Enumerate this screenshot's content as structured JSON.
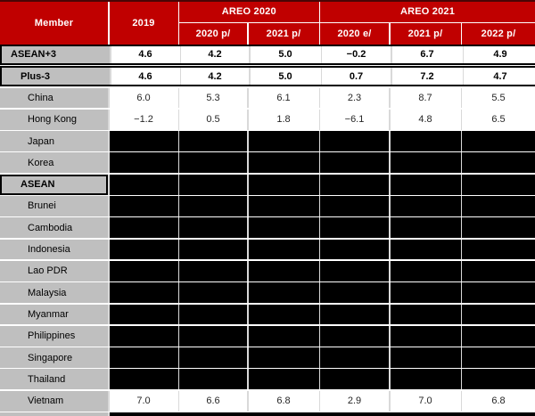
{
  "colors": {
    "header_red": "#C00000",
    "label_gray": "#BFBFBF",
    "grid_line": "#D9D9D9",
    "redaction_black": "#000000",
    "header_top_edge": "#4A0505"
  },
  "table": {
    "header": {
      "member_label": "Member",
      "year_col": "2019",
      "group_2020": "AREO 2020",
      "group_2021": "AREO 2021",
      "subs": [
        "2020 p/",
        "2021 p/",
        "2020 e/",
        "2021 p/",
        "2022 p/"
      ]
    },
    "rows": [
      {
        "member": "ASEAN+3",
        "style": "aggregate",
        "indent_level": 1,
        "redacted": false,
        "values": [
          "4.6",
          "4.2",
          "5.0",
          "−0.2",
          "6.7",
          "4.9"
        ]
      },
      {
        "member": "Plus-3",
        "style": "aggregate",
        "indent_level": 2,
        "redacted": false,
        "values": [
          "4.6",
          "4.2",
          "5.0",
          "0.7",
          "7.2",
          "4.7"
        ]
      },
      {
        "member": "China",
        "style": "normal",
        "indent_level": 3,
        "redacted": false,
        "values": [
          "6.0",
          "5.3",
          "6.1",
          "2.3",
          "8.7",
          "5.5"
        ]
      },
      {
        "member": "Hong Kong",
        "style": "normal",
        "indent_level": 3,
        "redacted": false,
        "values": [
          "−1.2",
          "0.5",
          "1.8",
          "−6.1",
          "4.8",
          "6.5"
        ]
      },
      {
        "member": "Japan",
        "style": "normal",
        "indent_level": 3,
        "redacted": true,
        "values": null
      },
      {
        "member": "Korea",
        "style": "normal",
        "indent_level": 3,
        "redacted": true,
        "values": null
      },
      {
        "member": "ASEAN",
        "style": "section",
        "indent_level": 2,
        "redacted": true,
        "values": null
      },
      {
        "member": "Brunei",
        "style": "normal",
        "indent_level": 3,
        "redacted": true,
        "values": null
      },
      {
        "member": "Cambodia",
        "style": "normal",
        "indent_level": 3,
        "redacted": true,
        "values": null
      },
      {
        "member": "Indonesia",
        "style": "normal",
        "indent_level": 3,
        "redacted": true,
        "values": null
      },
      {
        "member": "Lao PDR",
        "style": "normal",
        "indent_level": 3,
        "redacted": true,
        "values": null
      },
      {
        "member": "Malaysia",
        "style": "normal",
        "indent_level": 3,
        "redacted": true,
        "values": null
      },
      {
        "member": "Myanmar",
        "style": "normal",
        "indent_level": 3,
        "redacted": true,
        "values": null
      },
      {
        "member": "Philippines",
        "style": "normal",
        "indent_level": 3,
        "redacted": true,
        "values": null
      },
      {
        "member": "Singapore",
        "style": "normal",
        "indent_level": 3,
        "redacted": true,
        "values": null
      },
      {
        "member": "Thailand",
        "style": "normal",
        "indent_level": 3,
        "redacted": true,
        "values": null
      },
      {
        "member": "Vietnam",
        "style": "normal",
        "indent_level": 3,
        "redacted": false,
        "values": [
          "7.0",
          "6.6",
          "6.8",
          "2.9",
          "7.0",
          "6.8"
        ]
      }
    ]
  },
  "chart_data": {
    "type": "table",
    "title": "",
    "column_groups": [
      {
        "label": "AREO 2020",
        "columns": [
          "2020 p/",
          "2021 p/"
        ]
      },
      {
        "label": "AREO 2021",
        "columns": [
          "2020 e/",
          "2021 p/",
          "2022 p/"
        ]
      }
    ],
    "columns": [
      "Member",
      "2019",
      "2020 p/",
      "2021 p/",
      "2020 e/",
      "2021 p/",
      "2022 p/"
    ],
    "rows": [
      [
        "ASEAN+3",
        4.6,
        4.2,
        5.0,
        -0.2,
        6.7,
        4.9
      ],
      [
        "Plus-3",
        4.6,
        4.2,
        5.0,
        0.7,
        7.2,
        4.7
      ],
      [
        "China",
        6.0,
        5.3,
        6.1,
        2.3,
        8.7,
        5.5
      ],
      [
        "Hong Kong",
        -1.2,
        0.5,
        1.8,
        -6.1,
        4.8,
        6.5
      ],
      [
        "Japan",
        null,
        null,
        null,
        null,
        null,
        null
      ],
      [
        "Korea",
        null,
        null,
        null,
        null,
        null,
        null
      ],
      [
        "ASEAN",
        null,
        null,
        null,
        null,
        null,
        null
      ],
      [
        "Brunei",
        null,
        null,
        null,
        null,
        null,
        null
      ],
      [
        "Cambodia",
        null,
        null,
        null,
        null,
        null,
        null
      ],
      [
        "Indonesia",
        null,
        null,
        null,
        null,
        null,
        null
      ],
      [
        "Lao PDR",
        null,
        null,
        null,
        null,
        null,
        null
      ],
      [
        "Malaysia",
        null,
        null,
        null,
        null,
        null,
        null
      ],
      [
        "Myanmar",
        null,
        null,
        null,
        null,
        null,
        null
      ],
      [
        "Philippines",
        null,
        null,
        null,
        null,
        null,
        null
      ],
      [
        "Singapore",
        null,
        null,
        null,
        null,
        null,
        null
      ],
      [
        "Thailand",
        null,
        null,
        null,
        null,
        null,
        null
      ],
      [
        "Vietnam",
        7.0,
        6.6,
        6.8,
        2.9,
        7.0,
        6.8
      ]
    ],
    "redacted_rows": [
      "Japan",
      "Korea",
      "ASEAN",
      "Brunei",
      "Cambodia",
      "Indonesia",
      "Lao PDR",
      "Malaysia",
      "Myanmar",
      "Philippines",
      "Singapore",
      "Thailand"
    ],
    "legend_position": "none",
    "grid": true
  }
}
